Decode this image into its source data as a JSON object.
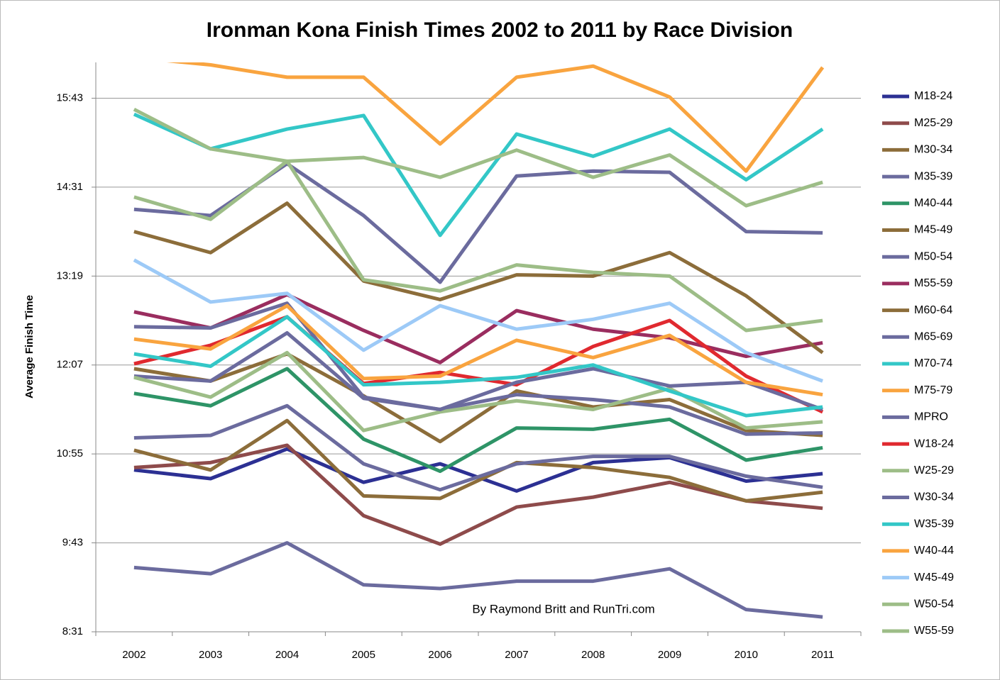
{
  "chart_data": {
    "type": "line",
    "title": "Ironman Kona Finish Times 2002 to 2011 by Race Division",
    "y_label": "Average Finish Time",
    "annotation": "By Raymond Britt and RunTri.com",
    "categories": [
      "2002",
      "2003",
      "2004",
      "2005",
      "2006",
      "2007",
      "2008",
      "2009",
      "2010",
      "2011"
    ],
    "ylim": [
      511,
      972
    ],
    "yticks": [
      {
        "value": 511,
        "label": "8:31"
      },
      {
        "value": 583,
        "label": "9:43"
      },
      {
        "value": 655,
        "label": "10:55"
      },
      {
        "value": 727,
        "label": "12:07"
      },
      {
        "value": 799,
        "label": "13:19"
      },
      {
        "value": 871,
        "label": "14:31"
      },
      {
        "value": 943,
        "label": "15:43"
      }
    ],
    "grid": true,
    "legend": "right",
    "series": [
      {
        "name": "M18-24",
        "color": "#2c3093",
        "values": [
          642,
          635,
          659,
          632,
          647,
          625,
          648,
          652,
          633,
          639
        ]
      },
      {
        "name": "M25-29",
        "color": "#8e4b4b",
        "values": [
          644,
          648,
          662,
          605,
          582,
          612,
          620,
          632,
          617,
          611
        ]
      },
      {
        "name": "M30-34",
        "color": "#8c6d3a",
        "values": [
          658,
          642,
          682,
          621,
          619,
          648,
          644,
          636,
          617,
          624
        ]
      },
      {
        "name": "M35-39",
        "color": "#6b6b9e",
        "values": [
          668,
          670,
          694,
          647,
          626,
          647,
          653,
          653,
          637,
          628
        ]
      },
      {
        "name": "M40-44",
        "color": "#2e9467",
        "values": [
          704,
          694,
          724,
          667,
          641,
          676,
          675,
          683,
          650,
          660
        ]
      },
      {
        "name": "M45-49",
        "color": "#8c6d3a",
        "values": [
          724,
          714,
          736,
          702,
          665,
          706,
          693,
          699,
          674,
          670
        ]
      },
      {
        "name": "M50-54",
        "color": "#6b6b9e",
        "values": [
          718,
          714,
          753,
          700,
          691,
          703,
          699,
          693,
          671,
          672
        ]
      },
      {
        "name": "M55-59",
        "color": "#9a2d5f",
        "values": [
          770,
          757,
          784,
          755,
          729,
          771,
          756,
          749,
          734,
          745
        ]
      },
      {
        "name": "M60-64",
        "color": "#8c6d3a",
        "values": [
          835,
          818,
          858,
          795,
          780,
          800,
          799,
          818,
          783,
          737
        ]
      },
      {
        "name": "M65-69",
        "color": "#6b6b9e",
        "values": [
          853,
          848,
          890,
          848,
          794,
          880,
          884,
          883,
          835,
          834
        ]
      },
      {
        "name": "M70-74",
        "color": "#33c7c7",
        "values": [
          930,
          902,
          918,
          929,
          832,
          914,
          896,
          918,
          877,
          918
        ]
      },
      {
        "name": "M75-79",
        "color": "#f9a43f",
        "values": [
          976,
          970,
          960,
          960,
          906,
          960,
          969,
          944,
          884,
          968
        ]
      },
      {
        "name": "MPRO",
        "color": "#6b6b9e",
        "values": [
          563,
          558,
          583,
          549,
          546,
          552,
          552,
          562,
          529,
          523
        ]
      },
      {
        "name": "W18-24",
        "color": "#e0292f",
        "values": [
          728,
          743,
          766,
          712,
          721,
          711,
          742,
          763,
          718,
          689
        ]
      },
      {
        "name": "W25-29",
        "color": "#9dbd87",
        "values": [
          717,
          701,
          737,
          674,
          689,
          698,
          691,
          708,
          676,
          681
        ]
      },
      {
        "name": "W30-34",
        "color": "#6b6b9e",
        "values": [
          758,
          757,
          777,
          701,
          691,
          713,
          724,
          710,
          713,
          691
        ]
      },
      {
        "name": "W35-39",
        "color": "#33c7c7",
        "values": [
          736,
          726,
          766,
          711,
          713,
          717,
          727,
          706,
          686,
          693
        ]
      },
      {
        "name": "W40-44",
        "color": "#f9a43f",
        "values": [
          748,
          740,
          775,
          716,
          718,
          747,
          733,
          751,
          713,
          703
        ]
      },
      {
        "name": "W45-49",
        "color": "#9dcaf7",
        "values": [
          812,
          778,
          785,
          739,
          775,
          756,
          764,
          777,
          737,
          714
        ]
      },
      {
        "name": "W50-54",
        "color": "#9dbd87",
        "values": [
          863,
          845,
          892,
          796,
          787,
          808,
          802,
          799,
          755,
          763
        ]
      },
      {
        "name": "W55-59",
        "color": "#9dbd87",
        "values": [
          934,
          902,
          892,
          895,
          879,
          901,
          879,
          897,
          856,
          875
        ]
      }
    ]
  }
}
